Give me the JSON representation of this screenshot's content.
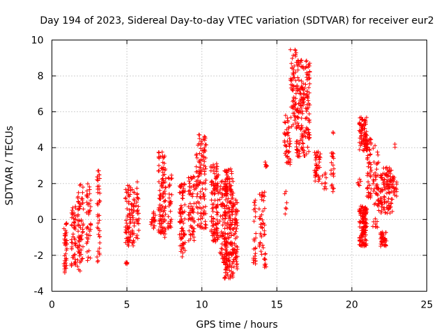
{
  "chart_data": {
    "type": "scatter",
    "title": "Day 194 of 2023, Sidereal Day-to-day VTEC variation (SDTVAR) for receiver eur2",
    "xlabel": "GPS time / hours",
    "ylabel": "SDTVAR / TECUs",
    "xlim": [
      0,
      25
    ],
    "ylim": [
      -4,
      10
    ],
    "xticks": [
      0,
      5,
      10,
      15,
      20,
      25
    ],
    "yticks": [
      -4,
      -2,
      0,
      2,
      4,
      6,
      8,
      10
    ],
    "grid": true,
    "marker": "+",
    "color": "#ff0000",
    "clusters": [
      {
        "x": [
          0.8,
          1.0
        ],
        "y": [
          -3.0,
          -0.2
        ],
        "n": 40
      },
      {
        "x": [
          1.3,
          1.6
        ],
        "y": [
          -2.6,
          0.8
        ],
        "n": 50
      },
      {
        "x": [
          1.7,
          2.1
        ],
        "y": [
          -3.0,
          2.0
        ],
        "n": 70
      },
      {
        "x": [
          2.3,
          2.6
        ],
        "y": [
          -2.3,
          2.2
        ],
        "n": 40
      },
      {
        "x": [
          3.0,
          3.2
        ],
        "y": [
          -2.4,
          2.8
        ],
        "n": 40
      },
      {
        "x": [
          4.9,
          5.1
        ],
        "y": [
          -2.5,
          -2.3
        ],
        "n": 6
      },
      {
        "x": [
          4.9,
          5.5
        ],
        "y": [
          -1.5,
          2.0
        ],
        "n": 90
      },
      {
        "x": [
          5.6,
          5.8
        ],
        "y": [
          -1.4,
          2.3
        ],
        "n": 25
      },
      {
        "x": [
          6.6,
          6.9
        ],
        "y": [
          -0.5,
          0.5
        ],
        "n": 20
      },
      {
        "x": [
          7.1,
          7.6
        ],
        "y": [
          -1.0,
          3.8
        ],
        "n": 110
      },
      {
        "x": [
          7.7,
          8.0
        ],
        "y": [
          -0.6,
          2.5
        ],
        "n": 30
      },
      {
        "x": [
          8.5,
          8.9
        ],
        "y": [
          -2.1,
          2.0
        ],
        "n": 80
      },
      {
        "x": [
          9.1,
          9.5
        ],
        "y": [
          -1.2,
          2.4
        ],
        "n": 60
      },
      {
        "x": [
          9.6,
          10.3
        ],
        "y": [
          -0.5,
          4.8
        ],
        "n": 120
      },
      {
        "x": [
          10.6,
          11.1
        ],
        "y": [
          -1.3,
          3.2
        ],
        "n": 110
      },
      {
        "x": [
          11.2,
          11.6
        ],
        "y": [
          -2.5,
          2.2
        ],
        "n": 70
      },
      {
        "x": [
          11.5,
          12.1
        ],
        "y": [
          -3.3,
          2.9
        ],
        "n": 200
      },
      {
        "x": [
          12.1,
          12.4
        ],
        "y": [
          -2.8,
          1.2
        ],
        "n": 60
      },
      {
        "x": [
          13.4,
          13.6
        ],
        "y": [
          -2.5,
          1.1
        ],
        "n": 25
      },
      {
        "x": [
          13.8,
          14.2
        ],
        "y": [
          -2.0,
          1.6
        ],
        "n": 40
      },
      {
        "x": [
          14.1,
          14.3
        ],
        "y": [
          -2.7,
          -1.8
        ],
        "n": 10
      },
      {
        "x": [
          14.2,
          14.4
        ],
        "y": [
          2.9,
          3.2
        ],
        "n": 6
      },
      {
        "x": [
          15.5,
          15.7
        ],
        "y": [
          0.3,
          1.6
        ],
        "n": 6
      },
      {
        "x": [
          15.5,
          15.9
        ],
        "y": [
          3.0,
          5.8
        ],
        "n": 45
      },
      {
        "x": [
          15.9,
          16.3
        ],
        "y": [
          5.0,
          9.5
        ],
        "n": 60
      },
      {
        "x": [
          16.3,
          17.2
        ],
        "y": [
          3.5,
          8.9
        ],
        "n": 180
      },
      {
        "x": [
          17.5,
          17.9
        ],
        "y": [
          2.0,
          3.8
        ],
        "n": 40
      },
      {
        "x": [
          18.0,
          18.3
        ],
        "y": [
          1.6,
          2.6
        ],
        "n": 10
      },
      {
        "x": [
          18.6,
          18.8
        ],
        "y": [
          1.4,
          3.9
        ],
        "n": 20
      },
      {
        "x": [
          18.7,
          18.8
        ],
        "y": [
          4.8,
          5.0
        ],
        "n": 2
      },
      {
        "x": [
          20.4,
          20.6
        ],
        "y": [
          1.8,
          2.4
        ],
        "n": 6
      },
      {
        "x": [
          20.5,
          21.0
        ],
        "y": [
          -1.5,
          0.8
        ],
        "n": 130
      },
      {
        "x": [
          20.5,
          21.0
        ],
        "y": [
          3.8,
          5.7
        ],
        "n": 80
      },
      {
        "x": [
          21.0,
          21.3
        ],
        "y": [
          1.2,
          4.5
        ],
        "n": 50
      },
      {
        "x": [
          21.4,
          21.8
        ],
        "y": [
          -0.5,
          4.5
        ],
        "n": 50
      },
      {
        "x": [
          21.9,
          22.3
        ],
        "y": [
          -1.5,
          -0.7
        ],
        "n": 40
      },
      {
        "x": [
          21.9,
          22.7
        ],
        "y": [
          0.3,
          2.9
        ],
        "n": 110
      },
      {
        "x": [
          22.7,
          23.0
        ],
        "y": [
          1.2,
          2.4
        ],
        "n": 20
      },
      {
        "x": [
          22.8,
          22.9
        ],
        "y": [
          4.0,
          4.2
        ],
        "n": 2
      }
    ]
  }
}
